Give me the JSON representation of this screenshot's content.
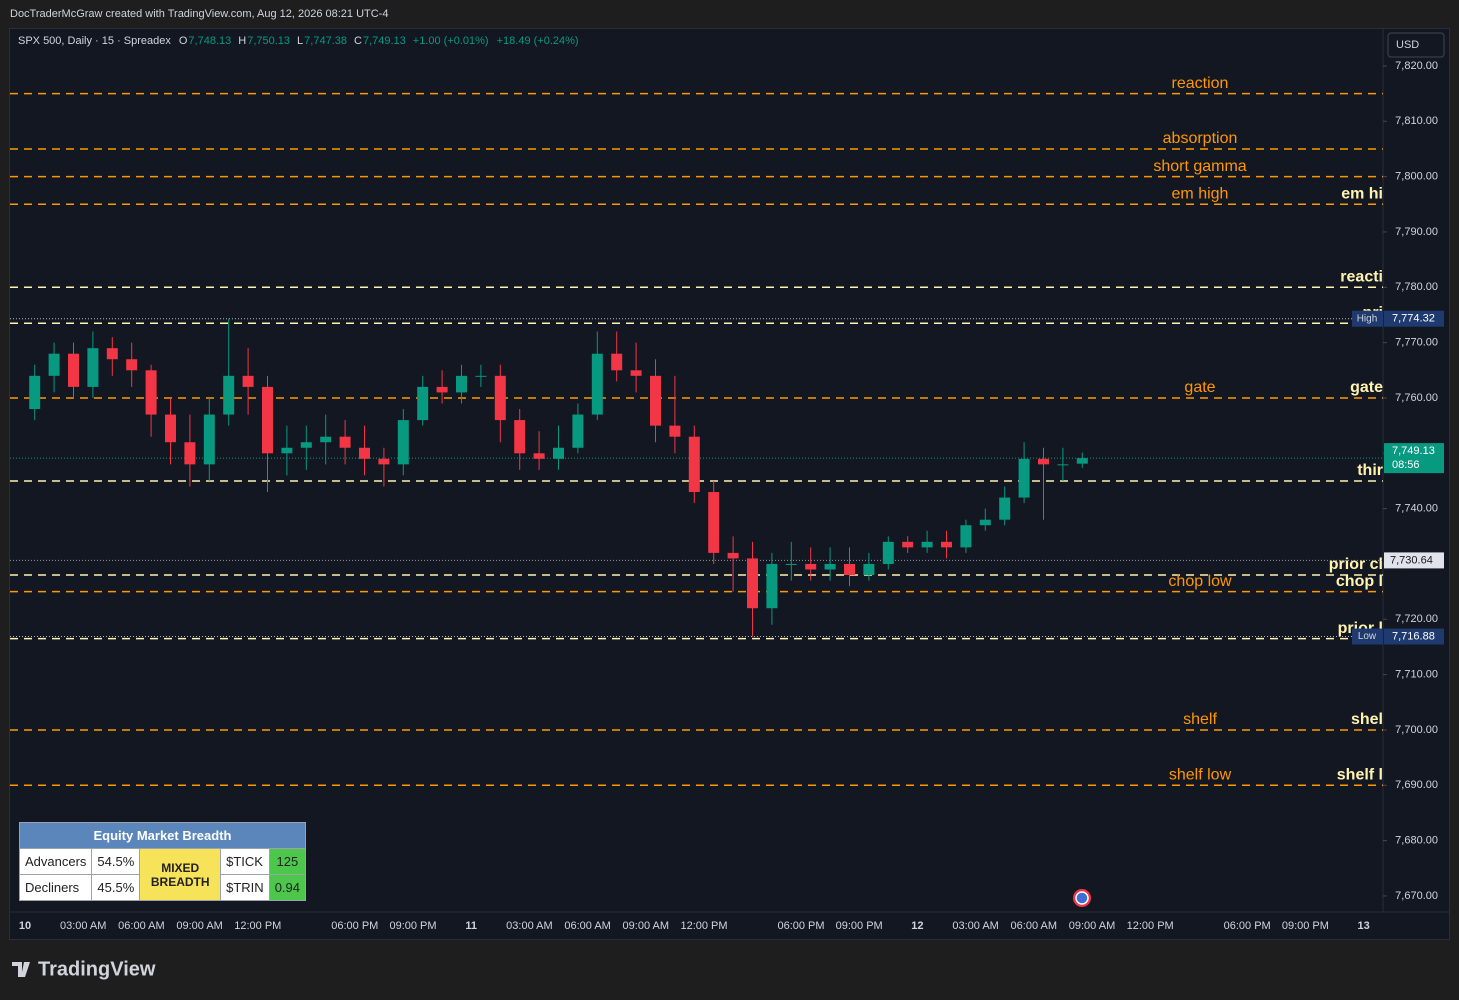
{
  "credit": "DocTraderMcGraw created with TradingView.com, Aug 12, 2026 08:21 UTC-4",
  "footer_logo": "TradingView",
  "chart_data": {
    "type": "candlestick",
    "symbol": "SPX 500, Daily · 15 · Spreadex",
    "ohlc_header": [
      {
        "label": "O",
        "value": "7,748.13"
      },
      {
        "label": "H",
        "value": "7,750.13"
      },
      {
        "label": "L",
        "value": "7,747.38"
      },
      {
        "label": "C",
        "value": "7,749.13"
      }
    ],
    "change": "+1.00 (+0.01%)",
    "session_change": "+18.49 (+0.24%)",
    "currency": "USD",
    "up_color": "#089981",
    "down_color": "#f23645",
    "categories": [
      "10",
      null,
      null,
      "03:00 AM",
      null,
      null,
      "06:00 AM",
      null,
      null,
      "09:00 AM",
      null,
      null,
      "12:00 PM",
      null,
      null,
      null,
      null,
      "06:00 PM",
      null,
      null,
      "09:00 PM",
      null,
      null,
      "11",
      null,
      null,
      "03:00 AM",
      null,
      null,
      "06:00 AM",
      null,
      null,
      "09:00 AM",
      null,
      null,
      "12:00 PM",
      null,
      null,
      null,
      null,
      "06:00 PM",
      null,
      null,
      "09:00 PM",
      null,
      null,
      "12",
      null,
      null,
      "03:00 AM",
      null,
      null,
      "06:00 AM",
      null,
      null,
      "09:00 AM",
      null,
      null,
      "12:00 PM",
      null,
      null,
      null,
      null,
      "06:00 PM",
      null,
      null,
      "09:00 PM",
      null,
      null,
      "13"
    ],
    "open": [
      7758,
      7764,
      7768,
      7762,
      7769,
      7767,
      7765,
      7757,
      7752,
      7748,
      7757,
      7764,
      7762,
      7750,
      7751,
      7752,
      7753,
      7751,
      7749,
      7748,
      7756,
      7762,
      7761,
      7764,
      7764,
      7756,
      7750,
      7749,
      7751,
      7757,
      7768,
      7765,
      7764,
      7755,
      7753,
      7743,
      7732,
      7731,
      7722,
      7730,
      7730,
      7729,
      7730,
      7728,
      7730,
      7734,
      7733,
      7734,
      7733,
      7737,
      7738,
      7742,
      7749,
      7748,
      7748.13,
      null,
      null,
      null,
      null,
      null,
      null,
      null,
      null,
      null,
      null,
      null,
      null,
      null,
      null,
      null
    ],
    "high": [
      7766,
      7770,
      7770,
      7772,
      7771,
      7770,
      7766,
      7760,
      7757,
      7760,
      7774.32,
      7769,
      7764,
      7755,
      7755,
      7757,
      7756,
      7755,
      7751,
      7758,
      7764,
      7765,
      7766,
      7766,
      7766,
      7758,
      7754,
      7755,
      7759,
      7772,
      7772,
      7770,
      7767,
      7764,
      7755,
      7745,
      7735,
      7734,
      7732,
      7734,
      7733,
      7733,
      7733,
      7732,
      7735,
      7735,
      7736,
      7736,
      7738,
      7740,
      7744,
      7752,
      7751,
      7751,
      7750.13,
      null,
      null,
      null,
      null,
      null,
      null,
      null,
      null,
      null,
      null,
      null,
      null,
      null,
      null,
      null
    ],
    "low": [
      7756,
      7761,
      7760,
      7760,
      7764,
      7762,
      7753,
      7748,
      7744,
      7745,
      7755,
      7757,
      7743,
      7746,
      7747,
      7748,
      7748,
      7746,
      7744,
      7746,
      7755,
      7759,
      7759,
      7762,
      7752,
      7747,
      7747,
      7747,
      7750,
      7756,
      7763,
      7761,
      7752,
      7750,
      7741,
      7730,
      7725,
      7716.88,
      7719,
      7727,
      7727,
      7727,
      7726,
      7727,
      7729,
      7732,
      7732,
      7731,
      7732,
      7736,
      7737,
      7741,
      7738,
      7745,
      7747.38,
      null,
      null,
      null,
      null,
      null,
      null,
      null,
      null,
      null,
      null,
      null,
      null,
      null,
      null,
      null
    ],
    "close": [
      7764,
      7768,
      7762,
      7769,
      7767,
      7765,
      7757,
      7752,
      7748,
      7757,
      7764,
      7762,
      7750,
      7751,
      7752,
      7753,
      7751,
      7749,
      7748,
      7756,
      7762,
      7761,
      7764,
      7764,
      7756,
      7750,
      7749,
      7751,
      7757,
      7768,
      7765,
      7764,
      7755,
      7753,
      7743,
      7732,
      7731,
      7722,
      7730,
      7730,
      7729,
      7730,
      7728,
      7730,
      7734,
      7733,
      7734,
      7733,
      7737,
      7738,
      7742,
      7749,
      7748,
      7748,
      7749.13,
      null,
      null,
      null,
      null,
      null,
      null,
      null,
      null,
      null,
      null,
      null,
      null,
      null,
      null,
      null
    ],
    "ylim": [
      7667.1,
      7826.5
    ],
    "yticks": [
      {
        "value": 7670,
        "label": "7,670.00"
      },
      {
        "value": 7680,
        "label": "7,680.00"
      },
      {
        "value": 7690,
        "label": "7,690.00"
      },
      {
        "value": 7700,
        "label": "7,700.00"
      },
      {
        "value": 7710,
        "label": "7,710.00"
      },
      {
        "value": 7720,
        "label": "7,720.00"
      },
      {
        "value": 7730,
        "label": "7,730.00"
      },
      {
        "value": 7740,
        "label": "7,740.00"
      },
      {
        "value": 7750,
        "label": "7,750.00"
      },
      {
        "value": 7760,
        "label": "7,760.00"
      },
      {
        "value": 7770,
        "label": "7,770.00"
      },
      {
        "value": 7780,
        "label": "7,780.00"
      },
      {
        "value": 7790,
        "label": "7,790.00"
      },
      {
        "value": 7800,
        "label": "7,800.00"
      },
      {
        "value": 7810,
        "label": "7,810.00"
      },
      {
        "value": 7820,
        "label": "7,820.00"
      }
    ],
    "levels": [
      {
        "value": 7815,
        "label": "reaction",
        "color": "#ff9800"
      },
      {
        "value": 7805,
        "label": "absorption",
        "color": "#ff9800"
      },
      {
        "value": 7800,
        "label": "short gamma",
        "color": "#ff9800"
      },
      {
        "value": 7795,
        "label": "em high",
        "tag": "em hi",
        "color": "#ff9800"
      },
      {
        "value": 7780,
        "tag": "reacti",
        "color": "#fff3b0"
      },
      {
        "value": 7773.5,
        "tag": "pri",
        "color": "#fff3b0"
      },
      {
        "value": 7760,
        "label": "gate",
        "tag": "gate",
        "color": "#ff9800"
      },
      {
        "value": 7745,
        "tag": "thir",
        "color": "#fff3b0"
      },
      {
        "value": 7728,
        "tag": "prior cl",
        "color": "#fff3b0"
      },
      {
        "value": 7725,
        "label": "chop low",
        "tag": "chop l",
        "color": "#ff9800"
      },
      {
        "value": 7716.5,
        "tag": "prior l",
        "color": "#fff3b0"
      },
      {
        "value": 7700,
        "label": "shelf",
        "tag": "shel",
        "color": "#ff9800"
      },
      {
        "value": 7690,
        "label": "shelf low",
        "tag": "shelf l",
        "color": "#ff9800"
      }
    ],
    "last_price": {
      "value": 7749.13,
      "label": "7,749.13",
      "countdown": "08:56",
      "color": "#089981"
    },
    "prior_close": {
      "value": 7730.64,
      "label": "7,730.64"
    },
    "high_marker": {
      "name": "High",
      "value": 7774.32,
      "label": "7,774.32"
    },
    "low_marker": {
      "name": "Low",
      "value": 7716.88,
      "label": "7,716.88"
    },
    "breadth_table": {
      "title": "Equity Market Breadth",
      "rows": [
        [
          "Advancers",
          "54.5%",
          "$TICK",
          "125"
        ],
        [
          "Decliners",
          "45.5%",
          "$TRIN",
          "0.94"
        ]
      ],
      "status": "MIXED BREADTH"
    }
  }
}
